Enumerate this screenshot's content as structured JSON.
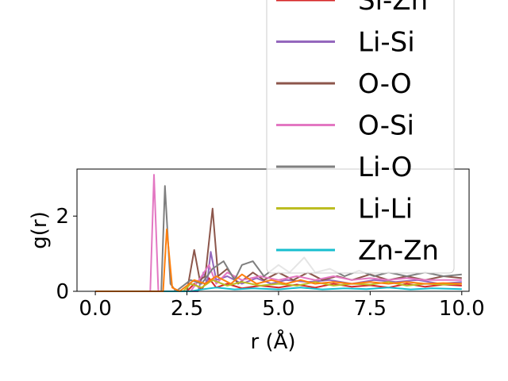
{
  "chart_data": {
    "type": "line",
    "title": "",
    "xlabel": "r (Å)",
    "ylabel": "g(r)",
    "xlim": [
      -0.5,
      10.2
    ],
    "ylim": [
      0,
      3.25
    ],
    "x_ticks": [
      "0.0",
      "2.5",
      "5.0",
      "7.5",
      "10.0"
    ],
    "y_ticks": [
      "0",
      "2"
    ],
    "grid": false,
    "legend_position": "upper-right",
    "legend_partial_first_label": "Si-Zn",
    "series": [
      {
        "name": "Si-Zn",
        "color": "#d62728",
        "points": [
          [
            0,
            0
          ],
          [
            2.5,
            0
          ],
          [
            2.7,
            0.2
          ],
          [
            2.9,
            0.05
          ],
          [
            3.1,
            0.35
          ],
          [
            3.3,
            0.1
          ],
          [
            3.6,
            0.2
          ],
          [
            4.0,
            0.08
          ],
          [
            4.5,
            0.15
          ],
          [
            5.0,
            0.1
          ],
          [
            5.5,
            0.18
          ],
          [
            6.0,
            0.1
          ],
          [
            6.5,
            0.2
          ],
          [
            7.0,
            0.12
          ],
          [
            7.5,
            0.16
          ],
          [
            8.0,
            0.1
          ],
          [
            8.5,
            0.2
          ],
          [
            9.0,
            0.12
          ],
          [
            9.5,
            0.18
          ],
          [
            10.0,
            0.15
          ]
        ]
      },
      {
        "name": "Li-Si",
        "color": "#9467bd",
        "points": [
          [
            0,
            0
          ],
          [
            2.8,
            0
          ],
          [
            2.95,
            0.5
          ],
          [
            3.05,
            0.2
          ],
          [
            3.15,
            1.05
          ],
          [
            3.3,
            0.3
          ],
          [
            3.6,
            0.4
          ],
          [
            4.0,
            0.2
          ],
          [
            4.4,
            0.35
          ],
          [
            4.8,
            0.2
          ],
          [
            5.2,
            0.3
          ],
          [
            5.8,
            0.25
          ],
          [
            6.4,
            0.3
          ],
          [
            7.0,
            0.2
          ],
          [
            7.6,
            0.3
          ],
          [
            8.2,
            0.25
          ],
          [
            8.8,
            0.3
          ],
          [
            9.4,
            0.2
          ],
          [
            10.0,
            0.25
          ]
        ]
      },
      {
        "name": "O-O",
        "color": "#8c564b",
        "points": [
          [
            0,
            0
          ],
          [
            2.5,
            0
          ],
          [
            2.7,
            1.1
          ],
          [
            2.85,
            0.3
          ],
          [
            3.0,
            0.4
          ],
          [
            3.2,
            2.2
          ],
          [
            3.35,
            0.4
          ],
          [
            3.6,
            0.6
          ],
          [
            3.9,
            0.2
          ],
          [
            4.3,
            0.5
          ],
          [
            4.6,
            0.3
          ],
          [
            5.0,
            0.5
          ],
          [
            5.4,
            0.3
          ],
          [
            5.8,
            0.5
          ],
          [
            6.2,
            0.3
          ],
          [
            6.6,
            0.4
          ],
          [
            7.0,
            0.3
          ],
          [
            7.5,
            0.45
          ],
          [
            8.0,
            0.3
          ],
          [
            8.5,
            0.4
          ],
          [
            9.0,
            0.3
          ],
          [
            9.5,
            0.4
          ],
          [
            10.0,
            0.35
          ]
        ]
      },
      {
        "name": "O-Si",
        "color": "#e377c2",
        "points": [
          [
            0,
            0
          ],
          [
            1.5,
            0
          ],
          [
            1.6,
            3.1
          ],
          [
            1.72,
            0
          ],
          [
            2.6,
            0
          ],
          [
            2.9,
            0.4
          ],
          [
            3.1,
            0.7
          ],
          [
            3.3,
            0.2
          ],
          [
            3.6,
            0.5
          ],
          [
            4.0,
            0.3
          ],
          [
            4.5,
            0.4
          ],
          [
            5.0,
            0.3
          ],
          [
            5.5,
            0.4
          ],
          [
            6.0,
            0.3
          ],
          [
            6.5,
            0.4
          ],
          [
            7.0,
            0.3
          ],
          [
            7.5,
            0.35
          ],
          [
            8.0,
            0.3
          ],
          [
            8.5,
            0.35
          ],
          [
            9.0,
            0.3
          ],
          [
            9.5,
            0.3
          ],
          [
            10.0,
            0.3
          ]
        ]
      },
      {
        "name": "Li-O",
        "color": "#7f7f7f",
        "points": [
          [
            0,
            0
          ],
          [
            1.8,
            0
          ],
          [
            1.9,
            2.8
          ],
          [
            2.05,
            0.2
          ],
          [
            2.2,
            0
          ],
          [
            2.6,
            0.3
          ],
          [
            2.9,
            0.2
          ],
          [
            3.2,
            0.6
          ],
          [
            3.5,
            0.8
          ],
          [
            3.8,
            0.3
          ],
          [
            4.0,
            0.7
          ],
          [
            4.3,
            0.8
          ],
          [
            4.6,
            0.4
          ],
          [
            5.0,
            0.7
          ],
          [
            5.3,
            0.5
          ],
          [
            5.7,
            0.9
          ],
          [
            6.0,
            0.5
          ],
          [
            6.4,
            0.6
          ],
          [
            6.8,
            0.4
          ],
          [
            7.2,
            0.55
          ],
          [
            7.6,
            0.4
          ],
          [
            8.0,
            0.5
          ],
          [
            8.5,
            0.4
          ],
          [
            9.0,
            0.5
          ],
          [
            9.5,
            0.4
          ],
          [
            10.0,
            0.45
          ]
        ]
      },
      {
        "name": "Li-Li",
        "color": "#bcbd22",
        "points": [
          [
            0,
            0
          ],
          [
            2.4,
            0
          ],
          [
            2.6,
            0.2
          ],
          [
            2.9,
            0.1
          ],
          [
            3.2,
            0.3
          ],
          [
            3.6,
            0.15
          ],
          [
            4.0,
            0.25
          ],
          [
            4.5,
            0.15
          ],
          [
            5.0,
            0.2
          ],
          [
            5.5,
            0.15
          ],
          [
            6.0,
            0.25
          ],
          [
            6.5,
            0.15
          ],
          [
            7.0,
            0.2
          ],
          [
            7.5,
            0.18
          ],
          [
            8.0,
            0.25
          ],
          [
            8.5,
            0.15
          ],
          [
            9.0,
            0.2
          ],
          [
            9.5,
            0.18
          ],
          [
            10.0,
            0.2
          ]
        ]
      },
      {
        "name": "Zn-Zn",
        "color": "#17becf",
        "points": [
          [
            0,
            0
          ],
          [
            2.6,
            0
          ],
          [
            2.9,
            0.05
          ],
          [
            3.3,
            0.1
          ],
          [
            3.8,
            0.05
          ],
          [
            4.3,
            0.08
          ],
          [
            5.0,
            0.05
          ],
          [
            5.6,
            0.1
          ],
          [
            6.2,
            0.05
          ],
          [
            6.8,
            0.08
          ],
          [
            7.4,
            0.06
          ],
          [
            8.0,
            0.1
          ],
          [
            8.6,
            0.05
          ],
          [
            9.2,
            0.08
          ],
          [
            10.0,
            0.06
          ]
        ]
      },
      {
        "name": "",
        "color": "#ff7f0e",
        "points": [
          [
            0,
            0
          ],
          [
            1.85,
            0
          ],
          [
            1.95,
            1.65
          ],
          [
            2.1,
            0.1
          ],
          [
            2.3,
            0
          ],
          [
            2.7,
            0.3
          ],
          [
            3.0,
            0.2
          ],
          [
            3.3,
            0.4
          ],
          [
            3.7,
            0.2
          ],
          [
            4.0,
            0.45
          ],
          [
            4.4,
            0.2
          ],
          [
            4.8,
            0.3
          ],
          [
            5.2,
            0.2
          ],
          [
            5.6,
            0.3
          ],
          [
            6.0,
            0.2
          ],
          [
            6.5,
            0.25
          ],
          [
            7.0,
            0.2
          ],
          [
            7.5,
            0.25
          ],
          [
            8.0,
            0.2
          ],
          [
            8.5,
            0.25
          ],
          [
            9.0,
            0.2
          ],
          [
            9.5,
            0.22
          ],
          [
            10.0,
            0.2
          ]
        ]
      }
    ]
  }
}
